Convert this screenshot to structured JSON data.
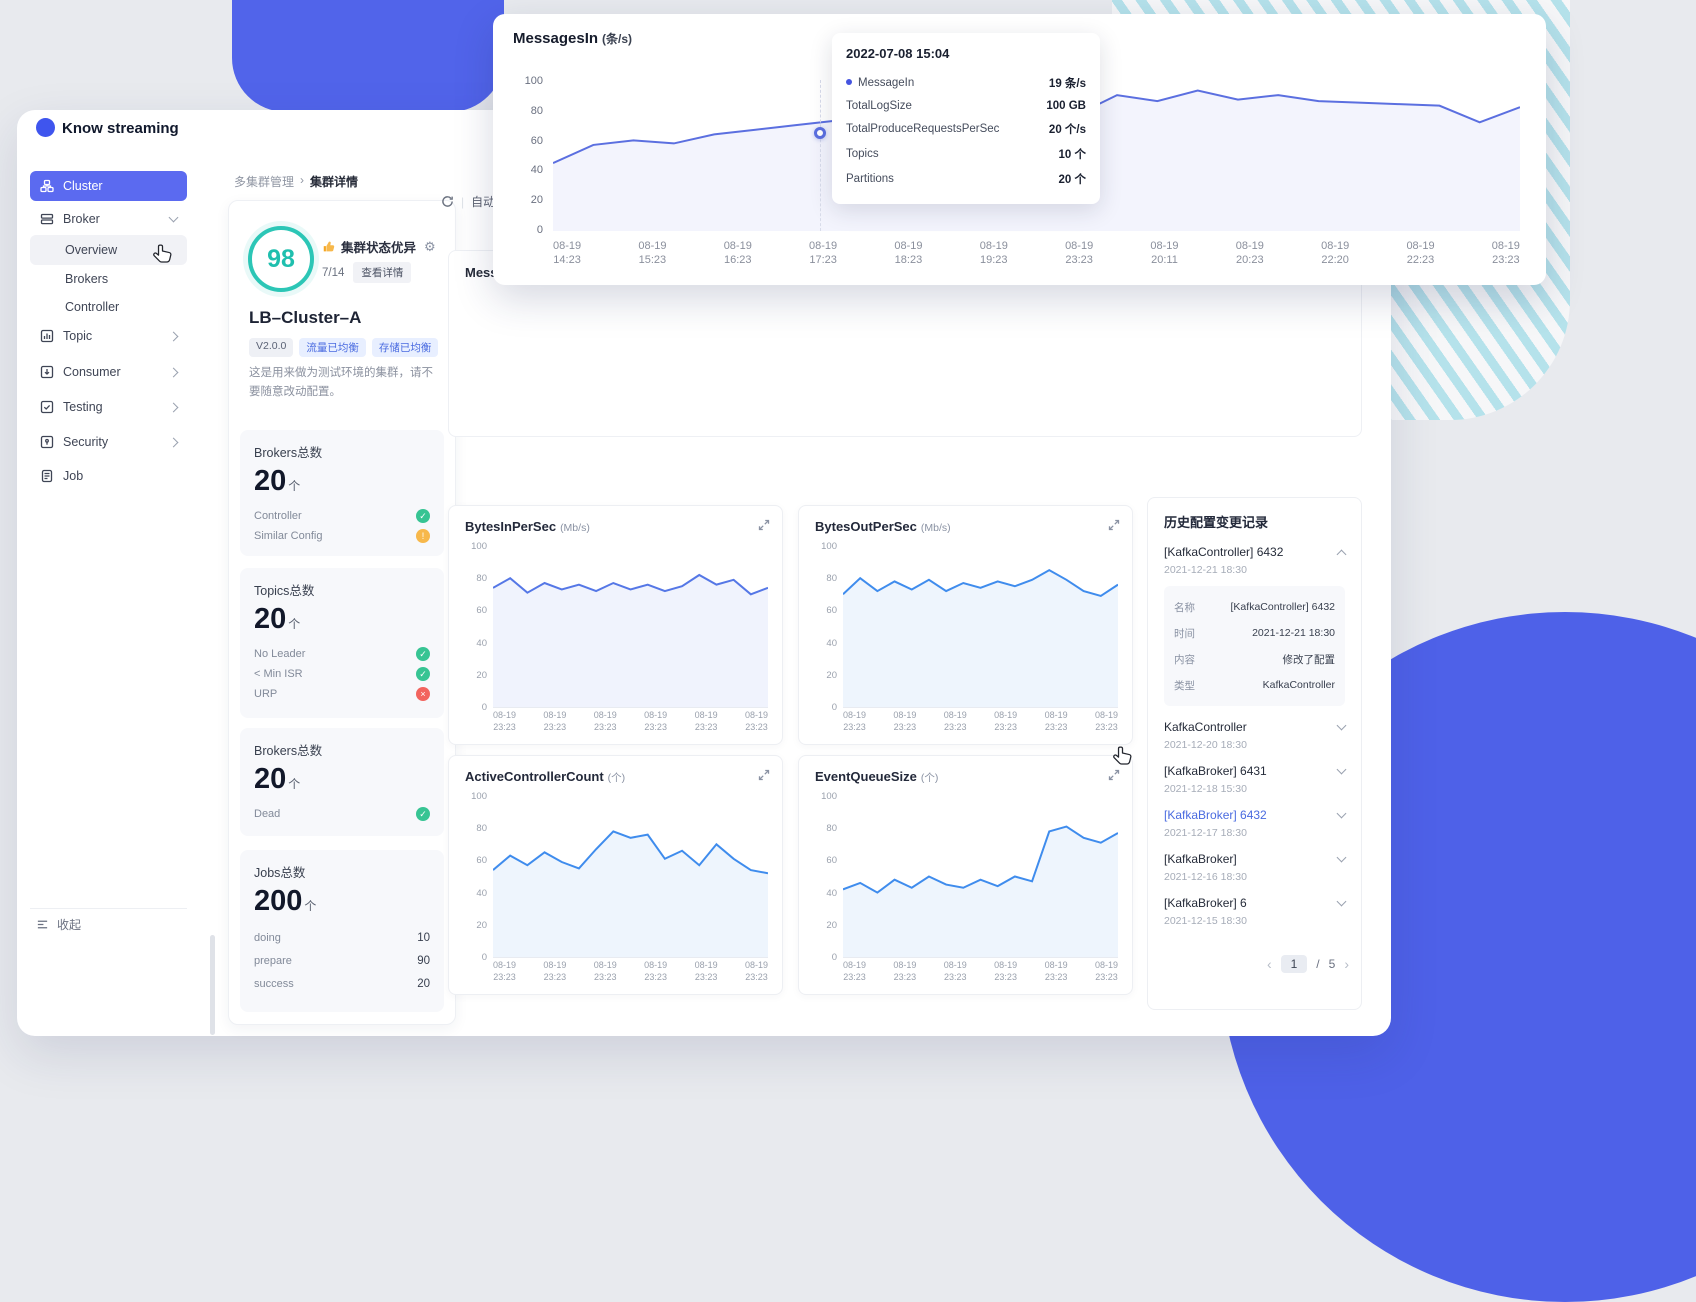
{
  "window": {
    "title": "Know streaming"
  },
  "breadcrumb": {
    "parent": "多集群管理",
    "separator": "›",
    "current": "集群详情"
  },
  "sidebar": {
    "items": [
      {
        "label": "Cluster"
      },
      {
        "label": "Broker"
      },
      {
        "label": "Overview"
      },
      {
        "label": "Brokers"
      },
      {
        "label": "Controller"
      },
      {
        "label": "Topic"
      },
      {
        "label": "Consumer"
      },
      {
        "label": "Testing"
      },
      {
        "label": "Security"
      },
      {
        "label": "Job"
      }
    ],
    "collapse_label": "收起"
  },
  "cluster_panel": {
    "score": "98",
    "status_text": "集群状态优异",
    "ratio": "7/14",
    "detail_button": "查看详情",
    "name": "LB–Cluster–A",
    "tags": [
      "V2.0.0",
      "流量已均衡",
      "存储已均衡"
    ],
    "description": "这是用来做为测试环境的集群，请不要随意改动配置。",
    "metrics": [
      {
        "title": "Brokers总数",
        "value": "20",
        "unit": "个",
        "rows": [
          {
            "label": "Controller",
            "status": "ok"
          },
          {
            "label": "Similar Config",
            "status": "warn"
          }
        ]
      },
      {
        "title": "Topics总数",
        "value": "20",
        "unit": "个",
        "rows": [
          {
            "label": "No Leader",
            "status": "ok"
          },
          {
            "label": "< Min ISR",
            "status": "ok"
          },
          {
            "label": "URP",
            "status": "error"
          }
        ]
      },
      {
        "title": "Brokers总数",
        "value": "20",
        "unit": "个",
        "rows": [
          {
            "label": "Dead",
            "status": "ok"
          }
        ]
      },
      {
        "title": "Jobs总数",
        "value": "200",
        "unit": "个",
        "rows": [
          {
            "label": "doing",
            "value": "10"
          },
          {
            "label": "prepare",
            "value": "90"
          },
          {
            "label": "success",
            "value": "20"
          }
        ]
      }
    ]
  },
  "toolbar": {
    "auto_refresh": "自动刷新"
  },
  "messages_panel": {
    "title": "MessagesIn"
  },
  "chart_data": {
    "overlay": {
      "type": "line",
      "title": "MessagesIn",
      "unit": "(条/s)",
      "ylim": [
        0,
        100
      ],
      "yticks": [
        "100",
        "80",
        "60",
        "40",
        "20",
        "0"
      ],
      "xticks": [
        [
          "08-19",
          "14:23"
        ],
        [
          "08-19",
          "15:23"
        ],
        [
          "08-19",
          "16:23"
        ],
        [
          "08-19",
          "17:23"
        ],
        [
          "08-19",
          "18:23"
        ],
        [
          "08-19",
          "19:23"
        ],
        [
          "08-19",
          "23:23"
        ],
        [
          "08-19",
          "20:11"
        ],
        [
          "08-19",
          "20:23"
        ],
        [
          "08-19",
          "22:20"
        ],
        [
          "08-19",
          "22:23"
        ],
        [
          "08-19",
          "23:23"
        ]
      ],
      "values": [
        45,
        57,
        60,
        58,
        64,
        67,
        70,
        73,
        81,
        66,
        70,
        68,
        74,
        77,
        90,
        86,
        93,
        87,
        90,
        86,
        85,
        84,
        83,
        72,
        82
      ],
      "color": "#5b6fe0",
      "fill": "rgba(99,115,232,0.08)",
      "tooltip": {
        "time": "2022-07-08 15:04",
        "rows": [
          {
            "label": "MessageIn",
            "value": "19 条/s"
          },
          {
            "label": "TotalLogSize",
            "value": "100 GB"
          },
          {
            "label": "TotalProduceRequestsPerSec",
            "value": "20 个/s"
          },
          {
            "label": "Topics",
            "value": "10 个"
          },
          {
            "label": "Partitions",
            "value": "20 个"
          }
        ]
      }
    },
    "grid": [
      {
        "type": "line",
        "title": "BytesInPerSec",
        "unit": "(Mb/s)",
        "ylim": [
          0,
          100
        ],
        "yticks": [
          "100",
          "80",
          "60",
          "40",
          "20",
          "0"
        ],
        "xticks": [
          [
            "08-19",
            "23:23"
          ],
          [
            "08-19",
            "23:23"
          ],
          [
            "08-19",
            "23:23"
          ],
          [
            "08-19",
            "23:23"
          ],
          [
            "08-19",
            "23:23"
          ],
          [
            "08-19",
            "23:23"
          ]
        ],
        "values": [
          74,
          80,
          71,
          77,
          73,
          76,
          72,
          77,
          73,
          76,
          72,
          75,
          82,
          76,
          79,
          70,
          74
        ],
        "color": "#5577e6",
        "fill": "rgba(85,119,230,0.09)"
      },
      {
        "type": "line",
        "title": "BytesOutPerSec",
        "unit": "(Mb/s)",
        "ylim": [
          0,
          100
        ],
        "yticks": [
          "100",
          "80",
          "60",
          "40",
          "20",
          "0"
        ],
        "xticks": [
          [
            "08-19",
            "23:23"
          ],
          [
            "08-19",
            "23:23"
          ],
          [
            "08-19",
            "23:23"
          ],
          [
            "08-19",
            "23:23"
          ],
          [
            "08-19",
            "23:23"
          ],
          [
            "08-19",
            "23:23"
          ]
        ],
        "values": [
          70,
          80,
          72,
          78,
          73,
          79,
          72,
          77,
          74,
          78,
          75,
          79,
          85,
          79,
          72,
          69,
          76
        ],
        "color": "#3f8ced",
        "fill": "rgba(63,140,237,0.09)"
      },
      {
        "type": "line",
        "title": "ActiveControllerCount",
        "unit": "(个)",
        "ylim": [
          0,
          100
        ],
        "yticks": [
          "100",
          "80",
          "60",
          "40",
          "20",
          "0"
        ],
        "xticks": [
          [
            "08-19",
            "23:23"
          ],
          [
            "08-19",
            "23:23"
          ],
          [
            "08-19",
            "23:23"
          ],
          [
            "08-19",
            "23:23"
          ],
          [
            "08-19",
            "23:23"
          ],
          [
            "08-19",
            "23:23"
          ]
        ],
        "values": [
          54,
          63,
          57,
          65,
          59,
          55,
          67,
          78,
          74,
          76,
          61,
          66,
          57,
          70,
          61,
          54,
          52
        ],
        "color": "#3f8ced",
        "fill": "rgba(63,140,237,0.09)"
      },
      {
        "type": "line",
        "title": "EventQueueSize",
        "unit": "(个)",
        "ylim": [
          0,
          100
        ],
        "yticks": [
          "100",
          "80",
          "60",
          "40",
          "20",
          "0"
        ],
        "xticks": [
          [
            "08-19",
            "23:23"
          ],
          [
            "08-19",
            "23:23"
          ],
          [
            "08-19",
            "23:23"
          ],
          [
            "08-19",
            "23:23"
          ],
          [
            "08-19",
            "23:23"
          ],
          [
            "08-19",
            "23:23"
          ]
        ],
        "values": [
          42,
          46,
          40,
          48,
          43,
          50,
          45,
          43,
          48,
          44,
          50,
          47,
          78,
          81,
          74,
          71,
          77
        ],
        "color": "#3f8ced",
        "fill": "rgba(63,140,237,0.09)"
      }
    ]
  },
  "history": {
    "title": "历史配置变更记录",
    "items": [
      {
        "name": "[KafkaController] 6432",
        "date": "2021-12-21 18:30"
      },
      {
        "name": "KafkaController",
        "date": "2021-12-20 18:30"
      },
      {
        "name": "[KafkaBroker] 6431",
        "date": "2021-12-18 15:30"
      },
      {
        "name": "[KafkaBroker] 6432",
        "date": "2021-12-17 18:30"
      },
      {
        "name": "[KafkaBroker]",
        "date": "2021-12-16 18:30"
      },
      {
        "name": "[KafkaBroker] 6",
        "date": "2021-12-15 18:30"
      }
    ],
    "detail": [
      {
        "label": "名称",
        "value": "[KafkaController] 6432"
      },
      {
        "label": "时间",
        "value": "2021-12-21 18:30"
      },
      {
        "label": "内容",
        "value": "修改了配置"
      },
      {
        "label": "类型",
        "value": "KafkaController"
      }
    ],
    "pagination": {
      "prev": "‹",
      "current": "1",
      "separator": "/",
      "total": "5",
      "next": "›"
    }
  },
  "colors": {
    "accent": "#4f63e8",
    "teal": "#2cc6b6",
    "sidebar_active": "#5b6af0"
  }
}
